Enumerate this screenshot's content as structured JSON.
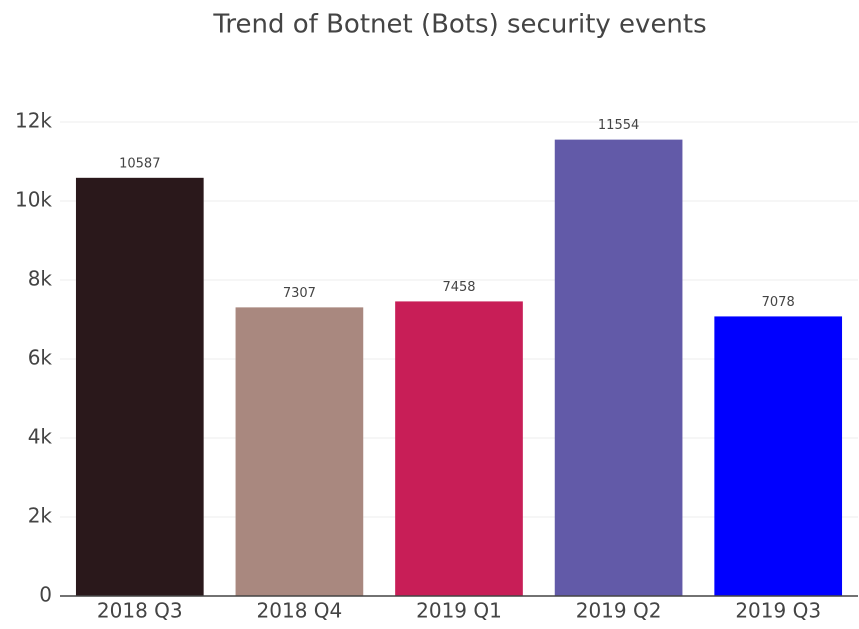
{
  "chart_data": {
    "type": "bar",
    "title": "Trend of Botnet (Bots) security events",
    "categories": [
      "2018 Q3",
      "2018 Q4",
      "2019 Q1",
      "2019 Q2",
      "2019 Q3"
    ],
    "values": [
      10587,
      7307,
      7458,
      11554,
      7078
    ],
    "colors": [
      "#2a181b",
      "#a9887f",
      "#c81e57",
      "#625aa8",
      "#0000ff"
    ],
    "ylim": [
      0,
      12000
    ],
    "yticks": [
      0,
      {
        "value": 2000,
        "label": "2k"
      },
      {
        "value": 4000,
        "label": "4k"
      },
      {
        "value": 6000,
        "label": "6k"
      },
      {
        "value": 8000,
        "label": "8k"
      },
      {
        "value": 10000,
        "label": "10k"
      },
      {
        "value": 12000,
        "label": "12k"
      }
    ],
    "grid": true
  }
}
